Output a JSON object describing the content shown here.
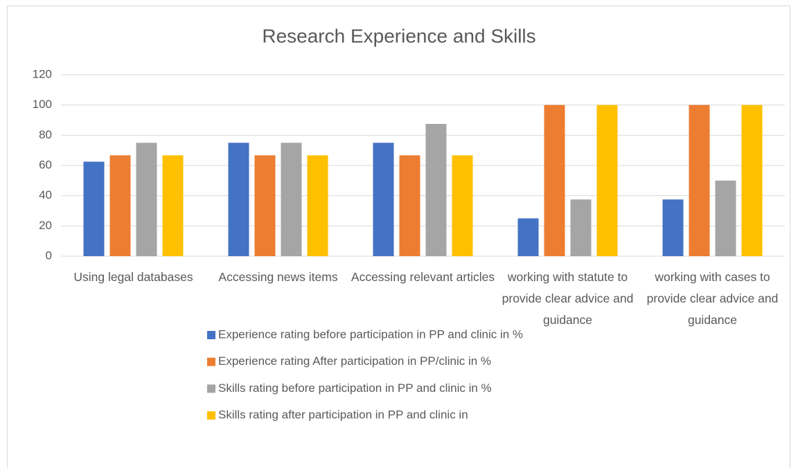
{
  "chart_data": {
    "type": "bar",
    "title": "Research Experience and Skills",
    "categories": [
      "Using legal databases",
      "Accessing news items",
      "Accessing relevant articles",
      "working with statute to provide clear advice and guidance",
      "working with cases to provide clear advice and guidance"
    ],
    "series": [
      {
        "name": "Experience rating before participation in PP and clinic in %",
        "color": "#4472c4",
        "values": [
          62.5,
          75,
          75,
          25,
          37.5
        ]
      },
      {
        "name": "Experience rating After participation in PP/clinic in %",
        "color": "#ed7d31",
        "values": [
          66.7,
          66.7,
          66.7,
          100,
          100
        ]
      },
      {
        "name": "Skills rating before participation in PP and clinic in %",
        "color": "#a5a5a5",
        "values": [
          75,
          75,
          87.5,
          37.5,
          50
        ]
      },
      {
        "name": "Skills rating after participation in PP and clinic in",
        "color": "#ffc000",
        "values": [
          66.7,
          66.7,
          66.7,
          100,
          100
        ]
      }
    ],
    "ylim": [
      0,
      120
    ],
    "yticks": [
      0,
      20,
      40,
      60,
      80,
      100,
      120
    ],
    "grid": true,
    "legend": "bottom"
  }
}
